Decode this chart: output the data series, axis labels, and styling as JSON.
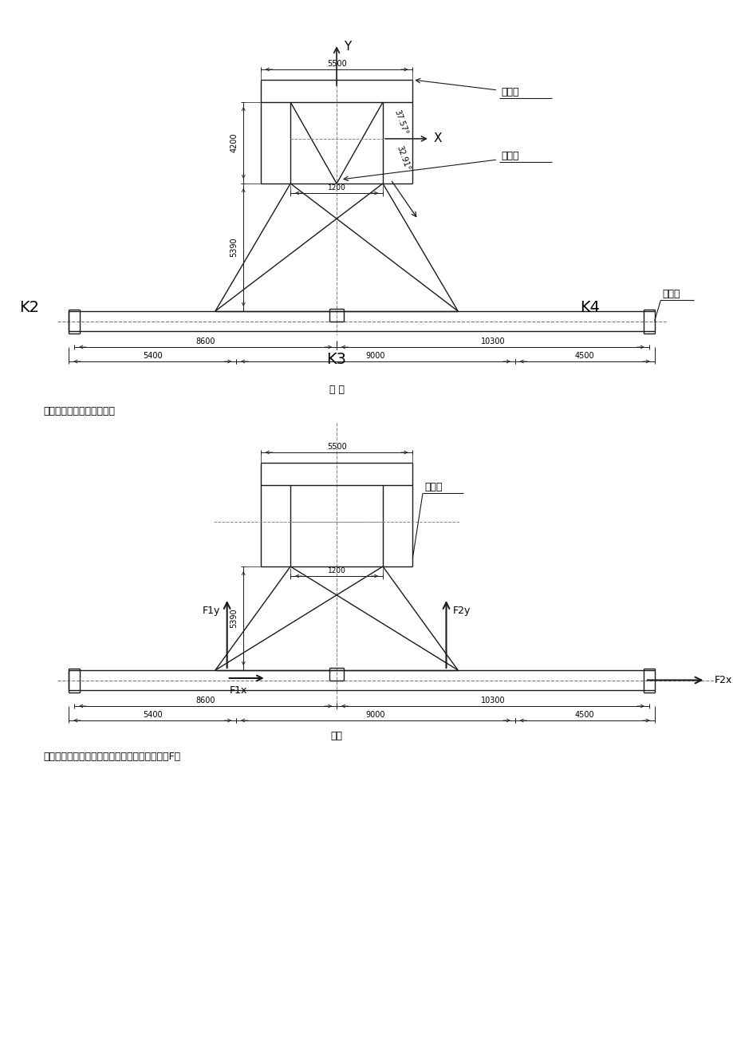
{
  "fig_width": 9.2,
  "fig_height": 13.01,
  "bg_color": "#ffffff",
  "line_color": "#1a1a1a",
  "fig1_caption": "图 二",
  "fig2_caption": "图三",
  "text1": "该工况下的受力简图如下：",
  "text2": "根据厂家所提供的受力数据得知图中力的大小如F：",
  "label_K2": "K2",
  "label_K3": "K3",
  "label_K4": "K4",
  "label_fzk1": "附着框",
  "label_fzl1": "附着梁",
  "label_bz": "标准节",
  "label_fzk2": "附着框",
  "dim_5500a": "5500",
  "dim_4200": "4200",
  "dim_5390a": "5390",
  "dim_1200a": "1200",
  "dim_8600a": "8600",
  "dim_10300a": "10300",
  "dim_5400a": "5400",
  "dim_9000a": "9000",
  "dim_4500a": "4500",
  "dim_5500b": "5500",
  "dim_1200b": "1200",
  "dim_8600b": "8600",
  "dim_10300b": "10300",
  "dim_5400b": "5400",
  "dim_9000b": "9000",
  "dim_4500b": "4500",
  "dim_5390b": "5390",
  "angle1": "37.57°",
  "angle2": "32.91°"
}
